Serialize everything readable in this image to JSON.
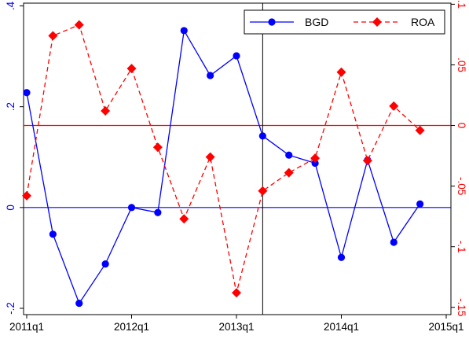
{
  "chart_data": {
    "type": "line",
    "title": "",
    "xlabel": "",
    "ylabel": "",
    "y2label": "",
    "x": [
      "2011q1",
      "2011q2",
      "2011q3",
      "2011q4",
      "2012q1",
      "2012q2",
      "2012q3",
      "2012q4",
      "2013q1",
      "2013q2",
      "2013q3",
      "2013q4",
      "2014q1",
      "2014q2",
      "2014q3",
      "2014q4"
    ],
    "x_ticks": [
      "2011q1",
      "2012q1",
      "2013q1",
      "2014q1",
      "2015q1"
    ],
    "xlim": [
      "2011q1",
      "2015q1"
    ],
    "ylim": [
      -0.2,
      0.4
    ],
    "y_ticks": [
      -0.2,
      0,
      0.2,
      0.4
    ],
    "y_tick_labels": [
      "-.2",
      "0",
      ".2",
      ".4"
    ],
    "y2lim": [
      -0.15,
      0.1
    ],
    "y2_ticks": [
      -0.15,
      -0.1,
      -0.05,
      0,
      0.05,
      0.1
    ],
    "y2_tick_labels": [
      "-.15",
      "-.1",
      "-.05",
      "0",
      ".05",
      ".1"
    ],
    "series": [
      {
        "name": "BGD",
        "axis": "left",
        "color": "#0000ff",
        "marker": "circle",
        "dash": "solid",
        "values": [
          0.228,
          -0.053,
          -0.19,
          -0.112,
          0.0,
          -0.01,
          0.351,
          0.262,
          0.301,
          0.142,
          0.104,
          0.088,
          -0.099,
          0.094,
          -0.069,
          0.007
        ]
      },
      {
        "name": "ROA",
        "axis": "right",
        "color": "#ff0000",
        "marker": "diamond",
        "dash": "dashed",
        "values": [
          -0.058,
          0.074,
          0.083,
          0.012,
          0.047,
          -0.018,
          -0.077,
          -0.026,
          -0.138,
          -0.054,
          -0.039,
          -0.027,
          0.044,
          -0.029,
          0.016,
          -0.004
        ]
      }
    ],
    "reference_lines": [
      {
        "orientation": "horizontal",
        "axis": "left",
        "value": 0,
        "color": "#0000ff"
      },
      {
        "orientation": "horizontal",
        "axis": "right",
        "value": 0,
        "color": "#ff0000"
      },
      {
        "orientation": "vertical",
        "value": "2013q2",
        "color": "#000000"
      }
    ],
    "grid": false,
    "legend": {
      "position": "top-right",
      "items": [
        "BGD",
        "ROA"
      ]
    }
  }
}
